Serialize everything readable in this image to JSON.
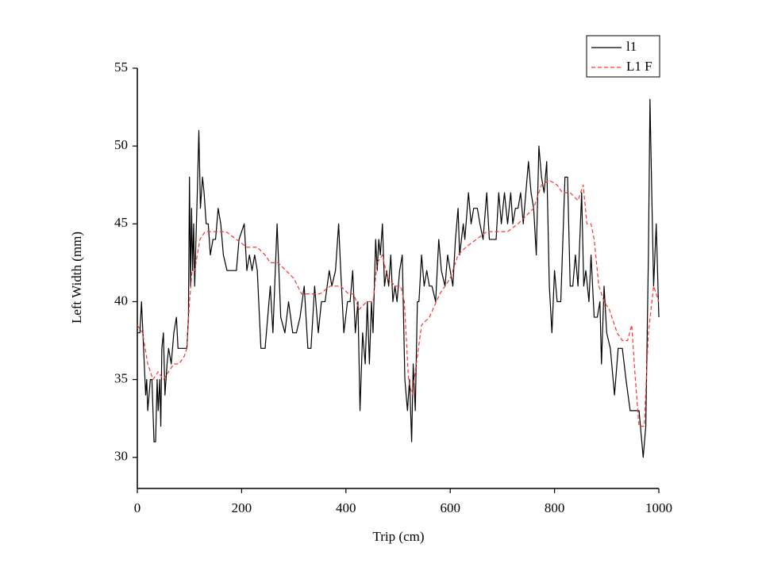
{
  "chart_data": {
    "type": "line",
    "xlabel": "Trip (cm)",
    "ylabel": "Left Width (mm)",
    "xlim": [
      0,
      1000
    ],
    "xticks": [
      0,
      200,
      400,
      600,
      800,
      1000
    ],
    "ylim": [
      28,
      55
    ],
    "yticks": [
      30,
      35,
      40,
      45,
      50,
      55
    ],
    "legend": "upper right",
    "series": [
      {
        "name": "l1",
        "color": "#000000",
        "dash": false,
        "x": [
          0,
          5,
          8,
          12,
          16,
          18,
          20,
          25,
          28,
          32,
          35,
          38,
          40,
          43,
          45,
          47,
          50,
          53,
          57,
          60,
          65,
          70,
          75,
          78,
          85,
          95,
          98,
          100,
          102,
          104,
          106,
          108,
          110,
          115,
          118,
          121,
          125,
          128,
          132,
          136,
          140,
          145,
          150,
          155,
          160,
          165,
          172,
          180,
          190,
          195,
          205,
          210,
          215,
          220,
          225,
          230,
          237,
          245,
          255,
          260,
          268,
          275,
          283,
          290,
          298,
          305,
          312,
          320,
          327,
          333,
          340,
          347,
          353,
          360,
          368,
          373,
          380,
          386,
          390,
          396,
          403,
          408,
          413,
          418,
          423,
          427,
          432,
          437,
          441,
          445,
          449,
          452,
          457,
          460,
          463,
          466,
          470,
          474,
          478,
          482,
          486,
          490,
          494,
          498,
          503,
          508,
          513,
          518,
          522,
          526,
          529,
          533,
          537,
          540,
          545,
          550,
          555,
          560,
          565,
          572,
          578,
          583,
          590,
          595,
          600,
          605,
          610,
          615,
          618,
          625,
          628,
          635,
          640,
          645,
          652,
          657,
          663,
          670,
          675,
          682,
          688,
          693,
          698,
          704,
          710,
          716,
          720,
          725,
          730,
          735,
          740,
          745,
          750,
          755,
          760,
          765,
          770,
          775,
          780,
          785,
          790,
          795,
          800,
          805,
          812,
          820,
          825,
          830,
          835,
          840,
          845,
          852,
          856,
          860,
          866,
          870,
          876,
          882,
          887,
          890,
          895,
          900,
          907,
          915,
          922,
          930,
          937,
          945,
          955,
          962,
          970,
          975,
          980,
          983,
          987,
          990,
          995,
          1000
        ],
        "values": [
          38,
          38,
          40,
          37,
          34,
          35,
          33,
          35,
          35,
          31,
          31,
          35,
          33,
          35,
          32,
          37,
          38,
          34,
          36,
          37,
          36,
          38,
          39,
          37,
          37,
          37,
          39,
          48,
          41,
          46,
          42,
          45,
          41,
          47,
          51,
          46,
          48,
          47,
          45,
          45,
          43,
          44,
          44,
          46,
          45,
          43,
          42,
          42,
          42,
          44,
          45,
          42,
          43,
          42,
          43,
          42,
          37,
          37,
          41,
          38,
          45,
          39,
          38,
          40,
          38,
          38,
          39,
          41,
          37,
          37,
          41,
          38,
          40,
          40,
          42,
          41,
          42,
          45,
          42,
          38,
          40,
          40,
          42,
          38,
          40,
          33,
          38,
          36,
          40,
          36,
          40,
          38,
          44,
          42,
          44,
          43,
          45,
          41,
          42,
          41,
          43,
          40,
          41,
          40,
          42,
          43,
          35,
          33,
          35,
          31,
          36,
          33,
          40,
          40,
          43,
          41,
          42,
          41,
          41,
          40,
          44,
          42,
          41,
          43,
          42,
          41,
          44,
          46,
          43,
          45,
          44,
          47,
          45,
          46,
          46,
          45,
          44,
          47,
          44,
          44,
          44,
          47,
          45,
          47,
          45,
          47,
          45,
          46,
          46,
          47,
          45,
          47,
          49,
          47,
          46,
          43,
          50,
          48,
          47,
          49,
          41,
          38,
          42,
          40,
          40,
          48,
          48,
          41,
          41,
          43,
          41,
          47,
          41,
          42,
          40,
          43,
          39,
          39,
          40,
          36,
          41,
          38,
          37,
          34,
          37,
          37,
          35,
          33,
          33,
          33,
          30,
          32,
          43,
          53,
          46,
          41,
          45,
          39
        ]
      },
      {
        "name": "L1 F",
        "color": "#ff3333",
        "dash": true,
        "x": [
          0,
          10,
          20,
          30,
          40,
          50,
          60,
          70,
          80,
          90,
          95,
          100,
          105,
          110,
          120,
          130,
          140,
          150,
          170,
          190,
          210,
          230,
          245,
          255,
          270,
          285,
          300,
          315,
          330,
          350,
          370,
          390,
          405,
          415,
          425,
          440,
          452,
          460,
          470,
          480,
          495,
          505,
          512,
          520,
          527,
          535,
          545,
          560,
          580,
          600,
          615,
          630,
          650,
          670,
          690,
          710,
          730,
          745,
          760,
          775,
          790,
          805,
          815,
          830,
          845,
          855,
          862,
          870,
          876,
          885,
          895,
          905,
          920,
          930,
          940,
          948,
          955,
          962,
          972,
          980,
          990,
          1000
        ],
        "values": [
          38.5,
          38,
          36,
          35,
          35.5,
          35,
          35.5,
          36,
          36,
          36.5,
          37,
          40,
          42,
          42,
          44,
          44.5,
          44.5,
          44.5,
          44.5,
          44,
          43.5,
          43.5,
          43,
          42.5,
          42.5,
          42,
          41.5,
          40.5,
          40.5,
          40.5,
          41,
          41,
          40.5,
          40.5,
          39.5,
          40,
          40,
          42.5,
          43,
          41.5,
          41,
          41,
          40,
          35,
          34,
          36,
          38.5,
          39,
          40.5,
          41.5,
          43,
          43.5,
          44,
          44.5,
          44.5,
          44.5,
          45,
          45.5,
          46,
          47.5,
          47.8,
          47.5,
          47,
          47,
          46.5,
          47.5,
          45,
          45,
          44,
          41,
          40,
          39.5,
          38,
          37.5,
          37.5,
          38.5,
          35,
          32,
          32,
          38,
          41,
          40
        ]
      }
    ]
  }
}
